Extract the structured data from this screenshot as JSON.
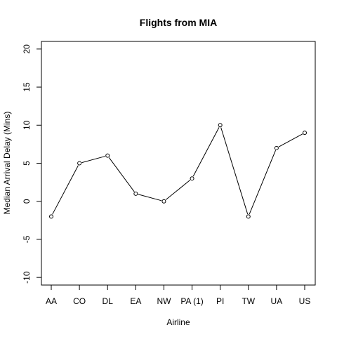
{
  "chart_data": {
    "type": "line",
    "title": "Flights from MIA",
    "xlabel": "Airline",
    "ylabel": "Median Arrival Delay (Mins)",
    "categories": [
      "AA",
      "CO",
      "DL",
      "EA",
      "NW",
      "PA (1)",
      "PI",
      "TW",
      "UA",
      "US"
    ],
    "values": [
      -2,
      5,
      6,
      1,
      0,
      3,
      10,
      -2,
      7,
      9
    ],
    "ylim": [
      -11,
      21
    ],
    "yticks": [
      -10,
      -5,
      0,
      5,
      10,
      15,
      20
    ],
    "grid": false,
    "legend": "none",
    "marker": "open-circle"
  }
}
